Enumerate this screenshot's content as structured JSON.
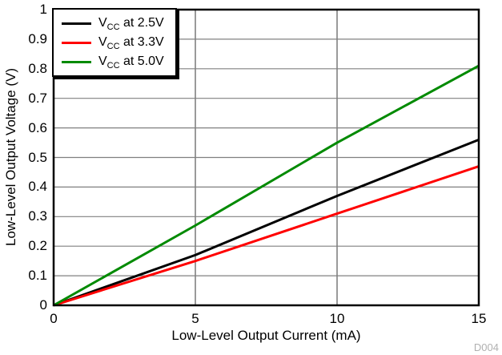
{
  "chart_data": {
    "type": "line",
    "title": "",
    "xlabel": "Low-Level Output Current (mA)",
    "ylabel": "Low-Level Output Voltage (V)",
    "xlim": [
      0,
      15
    ],
    "ylim": [
      0,
      1
    ],
    "xticks": {
      "values": [
        0,
        5,
        10,
        15
      ],
      "labels": [
        "0",
        "5",
        "10",
        "15"
      ]
    },
    "yticks": {
      "values": [
        0,
        0.1,
        0.2,
        0.3,
        0.4,
        0.5,
        0.6,
        0.7,
        0.8,
        0.9,
        1
      ],
      "labels": [
        "0",
        "0.1",
        "0.2",
        "0.3",
        "0.4",
        "0.5",
        "0.6",
        "0.7",
        "0.8",
        "0.9",
        "1"
      ]
    },
    "grid": true,
    "legend_position": "top-left",
    "x": [
      0,
      5,
      10,
      15
    ],
    "series": [
      {
        "name": "VCC at 2.5V",
        "legend": {
          "base": "V",
          "sub": "CC",
          "rest": " at 2.5V"
        },
        "color": "#000000",
        "values": [
          0,
          0.17,
          0.37,
          0.56
        ]
      },
      {
        "name": "VCC at 3.3V",
        "legend": {
          "base": "V",
          "sub": "CC",
          "rest": " at 3.3V"
        },
        "color": "#ff0000",
        "values": [
          0,
          0.15,
          0.31,
          0.47
        ]
      },
      {
        "name": "VCC at 5.0V",
        "legend": {
          "base": "V",
          "sub": "CC",
          "rest": " at 5.0V"
        },
        "color": "#008a00",
        "values": [
          0,
          0.27,
          0.55,
          0.81
        ]
      }
    ]
  },
  "figure_id": "D004",
  "colors": {
    "grid": "#808080",
    "frame": "#000000",
    "text": "#000000",
    "watermark": "#b0b0b0",
    "background": "#ffffff"
  }
}
